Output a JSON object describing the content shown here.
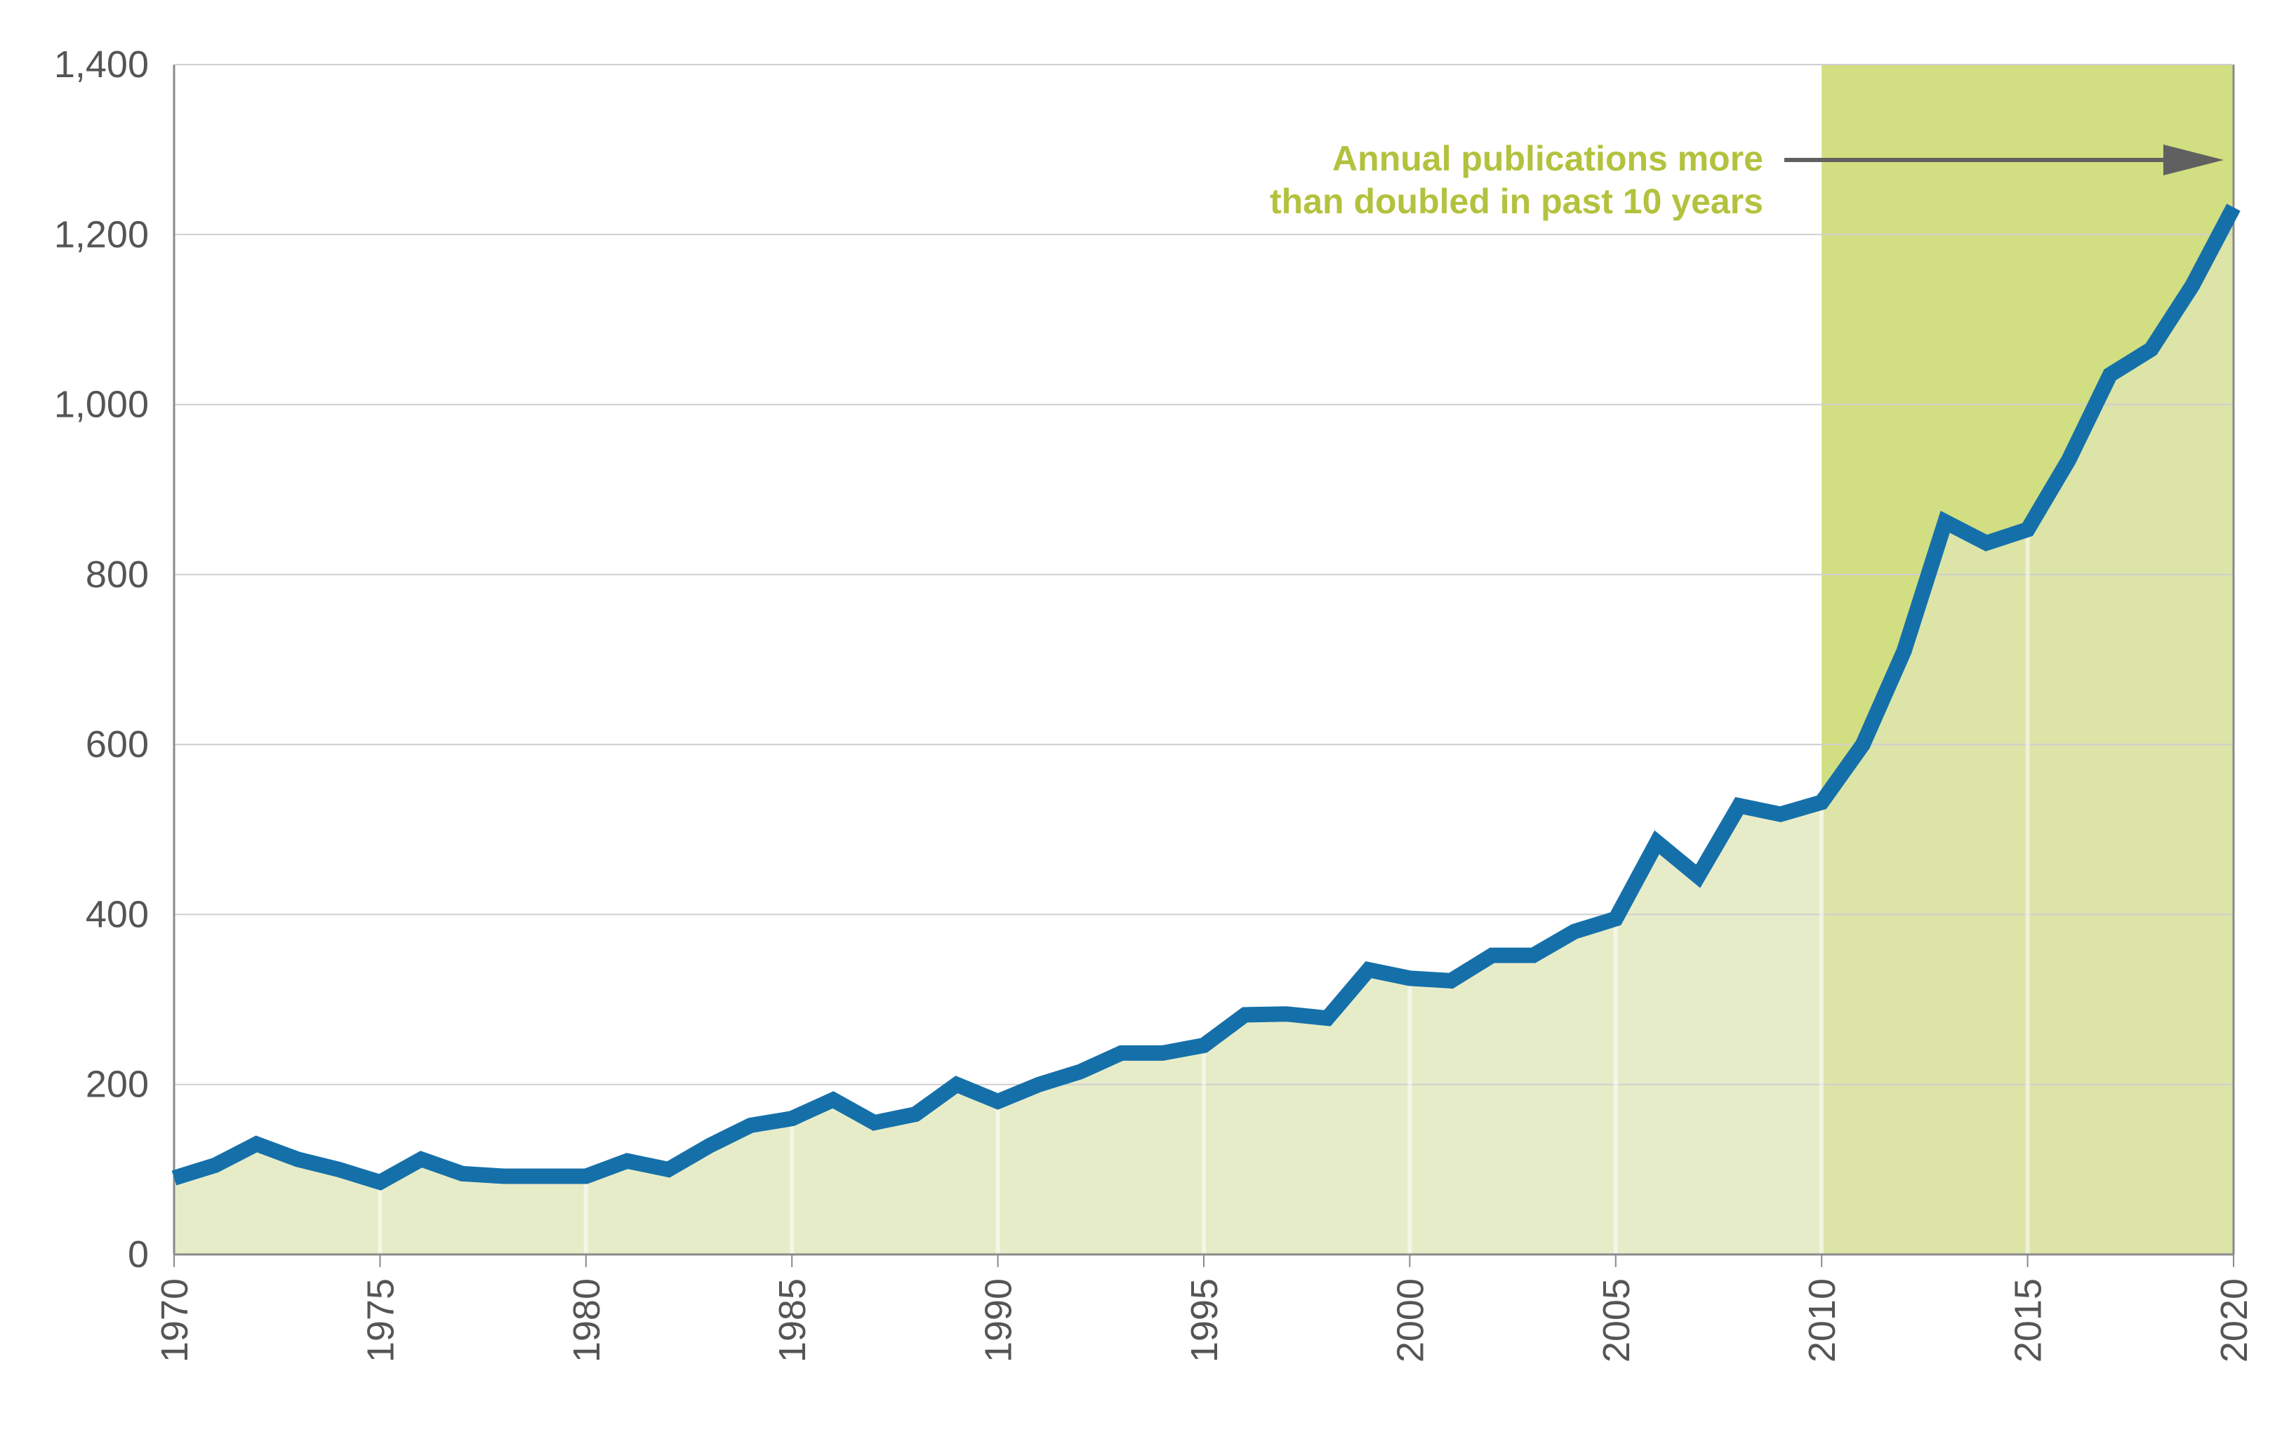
{
  "chart_data": {
    "type": "line",
    "title": "",
    "xlabel": "",
    "ylabel": "",
    "xlim": [
      1970,
      2020
    ],
    "ylim": [
      0,
      1400
    ],
    "grid": true,
    "x_ticks": [
      "1970",
      "1975",
      "1980",
      "1985",
      "1990",
      "1995",
      "2000",
      "2005",
      "2010",
      "2015",
      "2020"
    ],
    "y_ticks": [
      "0",
      "200",
      "400",
      "600",
      "800",
      "1,000",
      "1,200",
      "1,400"
    ],
    "highlight_range": [
      2010,
      2020
    ],
    "annotation": {
      "line1": "Annual publications more",
      "line2": "than doubled in past 10 years"
    },
    "colors": {
      "line": "#1570aa",
      "highlight": "#c9d86b",
      "area": "#dfe5b5",
      "annotation": "#b3c23e",
      "arrow": "#606060",
      "grid": "#cfcfcf",
      "axis": "#8a8a8a"
    },
    "series": [
      {
        "x": [
          1970,
          1971,
          1972,
          1973,
          1974,
          1975,
          1976,
          1977,
          1978,
          1979,
          1980,
          1981,
          1982,
          1983,
          1984,
          1985,
          1986,
          1987,
          1988,
          1989,
          1990,
          1991,
          1992,
          1993,
          1994,
          1995,
          1996,
          1997,
          1998,
          1999,
          2000,
          2001,
          2002,
          2003,
          2004,
          2005,
          2006,
          2007,
          2008,
          2009,
          2010,
          2011,
          2012,
          2013,
          2014,
          2015,
          2016,
          2017,
          2018,
          2019,
          2020
        ],
        "values": [
          90,
          105,
          130,
          112,
          100,
          85,
          112,
          95,
          92,
          92,
          92,
          110,
          100,
          128,
          152,
          160,
          182,
          155,
          165,
          200,
          180,
          200,
          215,
          237,
          237,
          246,
          282,
          283,
          278,
          335,
          325,
          322,
          352,
          352,
          380,
          395,
          485,
          445,
          528,
          518,
          532,
          600,
          710,
          862,
          837,
          853,
          935,
          1035,
          1065,
          1140,
          1232
        ]
      }
    ]
  }
}
